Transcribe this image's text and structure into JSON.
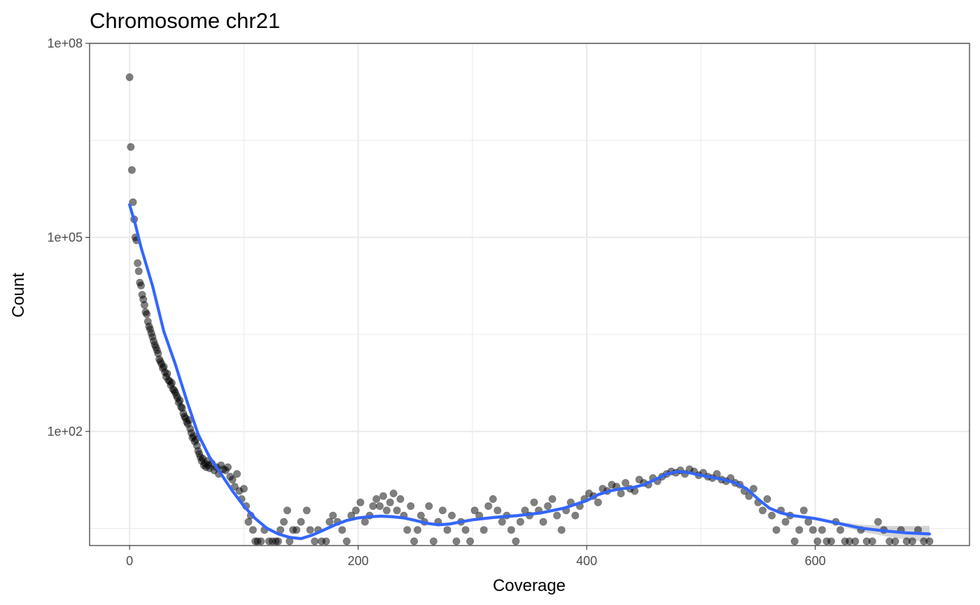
{
  "chart_data": {
    "type": "scatter",
    "title": "Chromosome chr21",
    "xlabel": "Coverage",
    "ylabel": "Count",
    "x_ticks": [
      0,
      200,
      400,
      600
    ],
    "y_ticks": [
      {
        "value": 100,
        "label": "1e+02"
      },
      {
        "value": 100000,
        "label": "1e+05"
      },
      {
        "value": 100000000,
        "label": "1e+08"
      }
    ],
    "xlim": [
      -35,
      735
    ],
    "ylim": [
      1.72,
      100000000.0
    ],
    "y_scale": "log10",
    "grid": true,
    "colors": {
      "points": "#000000",
      "smooth_line": "#3366FF",
      "confidence_band": "#999999",
      "grid": "#ebebeb",
      "panel_border": "#333333"
    },
    "smooth_line": [
      [
        0,
        320000
      ],
      [
        5,
        160000
      ],
      [
        10,
        70000
      ],
      [
        20,
        18000
      ],
      [
        30,
        3500
      ],
      [
        40,
        1100
      ],
      [
        50,
        300
      ],
      [
        60,
        90
      ],
      [
        70,
        40
      ],
      [
        80,
        22
      ],
      [
        90,
        12
      ],
      [
        100,
        7
      ],
      [
        110,
        4.5
      ],
      [
        120,
        3.2
      ],
      [
        130,
        2.6
      ],
      [
        140,
        2.3
      ],
      [
        150,
        2.2
      ],
      [
        160,
        2.5
      ],
      [
        170,
        3
      ],
      [
        180,
        3.6
      ],
      [
        190,
        4.2
      ],
      [
        200,
        4.6
      ],
      [
        210,
        4.8
      ],
      [
        220,
        4.9
      ],
      [
        230,
        4.8
      ],
      [
        240,
        4.6
      ],
      [
        250,
        4.2
      ],
      [
        260,
        3.8
      ],
      [
        270,
        3.6
      ],
      [
        280,
        3.7
      ],
      [
        290,
        4
      ],
      [
        300,
        4.3
      ],
      [
        320,
        4.7
      ],
      [
        340,
        5
      ],
      [
        360,
        5.5
      ],
      [
        380,
        6.5
      ],
      [
        400,
        8.5
      ],
      [
        410,
        10.5
      ],
      [
        420,
        12
      ],
      [
        430,
        13
      ],
      [
        440,
        13.5
      ],
      [
        450,
        15
      ],
      [
        460,
        18
      ],
      [
        470,
        22
      ],
      [
        480,
        24
      ],
      [
        490,
        23
      ],
      [
        500,
        21
      ],
      [
        520,
        18
      ],
      [
        530,
        16
      ],
      [
        540,
        13
      ],
      [
        550,
        9
      ],
      [
        560,
        6.5
      ],
      [
        570,
        5.5
      ],
      [
        580,
        5
      ],
      [
        600,
        4.5
      ],
      [
        620,
        3.8
      ],
      [
        640,
        3.2
      ],
      [
        660,
        2.9
      ],
      [
        680,
        2.7
      ],
      [
        700,
        2.6
      ]
    ],
    "points": [
      [
        0,
        30000000.0
      ],
      [
        1,
        2500000
      ],
      [
        2,
        1100000
      ],
      [
        3,
        350000
      ],
      [
        4,
        190000
      ],
      [
        5,
        100000
      ],
      [
        6,
        90000
      ],
      [
        7,
        40000
      ],
      [
        8,
        30000
      ],
      [
        9,
        20000
      ],
      [
        10,
        18000
      ],
      [
        11,
        13000
      ],
      [
        12,
        11000
      ],
      [
        13,
        9000
      ],
      [
        14,
        7000
      ],
      [
        15,
        6500
      ],
      [
        16,
        5000
      ],
      [
        17,
        4200
      ],
      [
        18,
        3800
      ],
      [
        19,
        3300
      ],
      [
        20,
        2900
      ],
      [
        21,
        2500
      ],
      [
        22,
        2200
      ],
      [
        23,
        2000
      ],
      [
        24,
        1800
      ],
      [
        25,
        1600
      ],
      [
        26,
        1300
      ],
      [
        27,
        1200
      ],
      [
        28,
        1100
      ],
      [
        29,
        950
      ],
      [
        30,
        1000
      ],
      [
        31,
        820
      ],
      [
        32,
        700
      ],
      [
        33,
        780
      ],
      [
        34,
        620
      ],
      [
        35,
        600
      ],
      [
        36,
        520
      ],
      [
        37,
        560
      ],
      [
        38,
        450
      ],
      [
        39,
        430
      ],
      [
        40,
        400
      ],
      [
        41,
        360
      ],
      [
        42,
        330
      ],
      [
        43,
        280
      ],
      [
        44,
        300
      ],
      [
        45,
        240
      ],
      [
        46,
        230
      ],
      [
        47,
        190
      ],
      [
        48,
        170
      ],
      [
        49,
        160
      ],
      [
        50,
        140
      ],
      [
        51,
        130
      ],
      [
        52,
        150
      ],
      [
        53,
        110
      ],
      [
        54,
        95
      ],
      [
        55,
        80
      ],
      [
        56,
        85
      ],
      [
        57,
        70
      ],
      [
        58,
        75
      ],
      [
        59,
        60
      ],
      [
        60,
        50
      ],
      [
        61,
        45
      ],
      [
        62,
        40
      ],
      [
        63,
        35
      ],
      [
        64,
        38
      ],
      [
        65,
        30
      ],
      [
        66,
        32
      ],
      [
        67,
        28
      ],
      [
        68,
        35
      ],
      [
        69,
        30
      ],
      [
        70,
        27
      ],
      [
        72,
        32
      ],
      [
        74,
        25
      ],
      [
        76,
        28
      ],
      [
        78,
        22
      ],
      [
        80,
        30
      ],
      [
        82,
        26
      ],
      [
        84,
        25
      ],
      [
        86,
        28
      ],
      [
        88,
        20
      ],
      [
        90,
        18
      ],
      [
        92,
        14
      ],
      [
        94,
        22
      ],
      [
        96,
        12
      ],
      [
        98,
        9
      ],
      [
        100,
        13
      ],
      [
        102,
        7
      ],
      [
        104,
        4
      ],
      [
        106,
        5
      ],
      [
        108,
        3
      ],
      [
        110,
        2
      ],
      [
        112,
        2
      ],
      [
        115,
        2
      ],
      [
        118,
        3
      ],
      [
        122,
        2
      ],
      [
        125,
        2
      ],
      [
        128,
        2
      ],
      [
        130,
        2
      ],
      [
        132,
        3
      ],
      [
        135,
        4
      ],
      [
        138,
        6
      ],
      [
        140,
        2
      ],
      [
        143,
        3
      ],
      [
        146,
        3
      ],
      [
        150,
        4
      ],
      [
        155,
        6
      ],
      [
        158,
        3
      ],
      [
        162,
        2
      ],
      [
        165,
        3
      ],
      [
        168,
        2
      ],
      [
        172,
        2
      ],
      [
        175,
        4
      ],
      [
        178,
        5
      ],
      [
        182,
        4
      ],
      [
        186,
        3
      ],
      [
        190,
        2
      ],
      [
        194,
        5
      ],
      [
        198,
        6
      ],
      [
        202,
        8
      ],
      [
        206,
        4
      ],
      [
        210,
        5
      ],
      [
        213,
        7
      ],
      [
        216,
        9
      ],
      [
        219,
        7
      ],
      [
        222,
        10
      ],
      [
        225,
        6
      ],
      [
        228,
        8
      ],
      [
        231,
        11
      ],
      [
        234,
        6
      ],
      [
        237,
        9
      ],
      [
        240,
        5
      ],
      [
        243,
        3
      ],
      [
        246,
        7
      ],
      [
        249,
        2
      ],
      [
        252,
        3
      ],
      [
        255,
        5
      ],
      [
        258,
        4
      ],
      [
        262,
        7
      ],
      [
        266,
        2
      ],
      [
        270,
        4
      ],
      [
        274,
        6
      ],
      [
        278,
        3
      ],
      [
        282,
        5
      ],
      [
        286,
        2
      ],
      [
        290,
        4
      ],
      [
        294,
        3
      ],
      [
        298,
        2
      ],
      [
        302,
        6
      ],
      [
        306,
        5
      ],
      [
        310,
        3
      ],
      [
        314,
        7
      ],
      [
        318,
        9
      ],
      [
        322,
        6
      ],
      [
        326,
        4
      ],
      [
        330,
        5
      ],
      [
        334,
        3
      ],
      [
        338,
        2
      ],
      [
        342,
        4
      ],
      [
        346,
        6
      ],
      [
        350,
        5
      ],
      [
        354,
        8
      ],
      [
        358,
        6
      ],
      [
        362,
        4
      ],
      [
        366,
        7
      ],
      [
        370,
        9
      ],
      [
        374,
        5
      ],
      [
        378,
        3
      ],
      [
        382,
        6
      ],
      [
        386,
        8
      ],
      [
        390,
        5
      ],
      [
        394,
        7
      ],
      [
        398,
        9
      ],
      [
        402,
        11
      ],
      [
        406,
        10
      ],
      [
        410,
        8
      ],
      [
        414,
        13
      ],
      [
        418,
        12
      ],
      [
        422,
        15
      ],
      [
        426,
        14
      ],
      [
        430,
        11
      ],
      [
        434,
        16
      ],
      [
        438,
        13
      ],
      [
        442,
        12
      ],
      [
        446,
        18
      ],
      [
        450,
        16
      ],
      [
        454,
        15
      ],
      [
        458,
        19
      ],
      [
        462,
        17
      ],
      [
        466,
        20
      ],
      [
        470,
        22
      ],
      [
        474,
        24
      ],
      [
        478,
        23
      ],
      [
        482,
        25
      ],
      [
        486,
        22
      ],
      [
        490,
        26
      ],
      [
        494,
        24
      ],
      [
        498,
        21
      ],
      [
        502,
        23
      ],
      [
        506,
        20
      ],
      [
        510,
        19
      ],
      [
        514,
        22
      ],
      [
        518,
        18
      ],
      [
        522,
        17
      ],
      [
        526,
        19
      ],
      [
        530,
        16
      ],
      [
        534,
        15
      ],
      [
        538,
        12
      ],
      [
        542,
        10
      ],
      [
        546,
        13
      ],
      [
        550,
        8
      ],
      [
        554,
        6
      ],
      [
        558,
        9
      ],
      [
        562,
        5
      ],
      [
        566,
        3
      ],
      [
        570,
        6
      ],
      [
        574,
        4
      ],
      [
        578,
        5
      ],
      [
        582,
        2
      ],
      [
        586,
        3
      ],
      [
        590,
        6
      ],
      [
        594,
        4
      ],
      [
        598,
        3
      ],
      [
        602,
        2
      ],
      [
        606,
        3
      ],
      [
        610,
        2
      ],
      [
        614,
        2
      ],
      [
        618,
        4
      ],
      [
        622,
        3
      ],
      [
        626,
        2
      ],
      [
        630,
        2
      ],
      [
        635,
        2
      ],
      [
        640,
        3
      ],
      [
        645,
        2
      ],
      [
        650,
        2
      ],
      [
        655,
        4
      ],
      [
        660,
        3
      ],
      [
        665,
        2
      ],
      [
        670,
        2
      ],
      [
        675,
        3
      ],
      [
        680,
        2
      ],
      [
        685,
        2
      ],
      [
        690,
        3
      ],
      [
        695,
        2
      ],
      [
        700,
        2
      ]
    ]
  }
}
